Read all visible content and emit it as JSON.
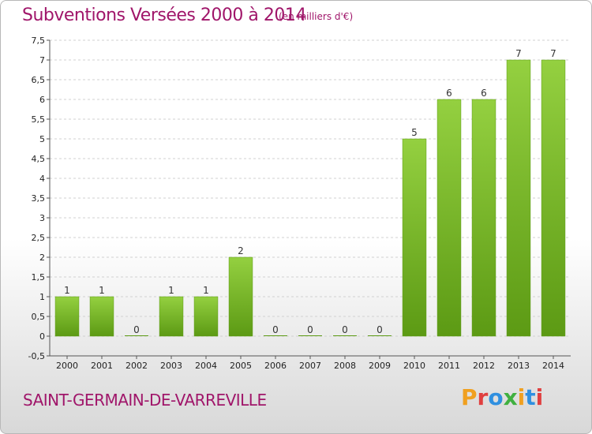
{
  "chart_data": {
    "type": "bar",
    "title": "Subventions Versées 2000 à 2014",
    "subtitle": "(en milliers d'€)",
    "categories": [
      "2000",
      "2001",
      "2002",
      "2003",
      "2004",
      "2005",
      "2006",
      "2007",
      "2008",
      "2009",
      "2010",
      "2011",
      "2012",
      "2013",
      "2014"
    ],
    "values": [
      1,
      1,
      0,
      1,
      1,
      2,
      0,
      0,
      0,
      0,
      5,
      6,
      6,
      7,
      7
    ],
    "data_labels": [
      "1",
      "1",
      "0",
      "1",
      "1",
      "2",
      "0",
      "0",
      "0",
      "0",
      "5",
      "6",
      "6",
      "7",
      "7"
    ],
    "ylim": [
      -0.5,
      7.5
    ],
    "yticks": [
      "-0,5",
      "0",
      "0,5",
      "1",
      "1,5",
      "2",
      "2,5",
      "3",
      "3,5",
      "4",
      "4,5",
      "5",
      "5,5",
      "6",
      "6,5",
      "7",
      "7,5"
    ],
    "grid": true,
    "bar_color": "#7cc02e",
    "bar_color_dark": "#5c9a14"
  },
  "footer": {
    "commune": "SAINT-GERMAIN-DE-VARREVILLE",
    "logo_letters": [
      "P",
      "r",
      "o",
      "x",
      "i",
      "t",
      "i"
    ]
  }
}
